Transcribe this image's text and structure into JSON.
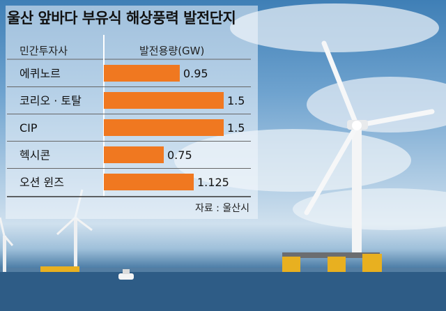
{
  "title": "울산 앞바다 부유식 해상풍력 발전단지",
  "table_headers": {
    "company": "민간투자사",
    "capacity": "발전용량(GW)"
  },
  "source": "자료 : 울산시",
  "colors": {
    "bar": "#f07820",
    "divider": "#666666",
    "title": "#111111"
  },
  "chart_data": {
    "type": "bar",
    "orientation": "horizontal",
    "title": "울산 앞바다 부유식 해상풍력 발전단지",
    "categories": [
      "에퀴노르",
      "코리오 · 토탈",
      "CIP",
      "헥시콘",
      "오션 윈즈"
    ],
    "values": [
      0.95,
      1.5,
      1.5,
      0.75,
      1.125
    ],
    "value_labels": [
      "0.95",
      "1.5",
      "1.5",
      "0.75",
      "1.125"
    ],
    "xlabel": "",
    "ylabel": "",
    "xlim": [
      0,
      1.5
    ],
    "grid": false,
    "legend": "none"
  }
}
